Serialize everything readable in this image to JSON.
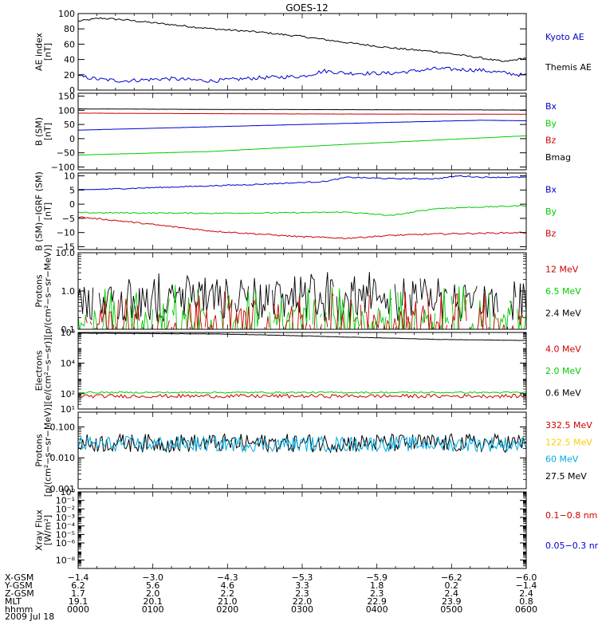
{
  "title": "GOES-12",
  "chart_data": [
    {
      "type": "line",
      "ylabel": "AE index\n[nT]",
      "ylim": [
        0,
        100
      ],
      "yticks": [
        {
          "v": 0,
          "label": "0"
        },
        {
          "v": 20,
          "label": "20"
        },
        {
          "v": 40,
          "label": "40"
        },
        {
          "v": 60,
          "label": "60"
        },
        {
          "v": 80,
          "label": "80"
        },
        {
          "v": 100,
          "label": "100"
        }
      ],
      "legend": [
        {
          "label": "Kyoto AE",
          "color": "#0000cc"
        },
        {
          "label": "Themis AE",
          "color": "#000000"
        }
      ],
      "series": [
        {
          "name": "Themis AE",
          "color": "#000000",
          "noise": 1.2,
          "x": [
            0,
            0.05,
            0.1,
            0.2,
            0.3,
            0.4,
            0.5,
            0.6,
            0.7,
            0.8,
            0.9,
            0.95,
            1.0
          ],
          "y": [
            90,
            94,
            92,
            86,
            80,
            76,
            70,
            62,
            55,
            50,
            42,
            37,
            42
          ]
        },
        {
          "name": "Kyoto AE",
          "color": "#0000cc",
          "noise": 2.5,
          "x": [
            0,
            0.05,
            0.1,
            0.2,
            0.3,
            0.4,
            0.5,
            0.55,
            0.6,
            0.7,
            0.8,
            0.9,
            1.0
          ],
          "y": [
            18,
            14,
            12,
            15,
            12,
            16,
            18,
            25,
            22,
            22,
            28,
            26,
            19
          ]
        }
      ]
    },
    {
      "type": "line",
      "ylabel": "B (SM)\n[nT]",
      "ylim": [
        -110,
        160
      ],
      "yticks": [
        {
          "v": -100,
          "label": "−100"
        },
        {
          "v": -50,
          "label": "−50"
        },
        {
          "v": 0,
          "label": "0"
        },
        {
          "v": 50,
          "label": "50"
        },
        {
          "v": 100,
          "label": "100"
        },
        {
          "v": 150,
          "label": "150"
        }
      ],
      "legend": [
        {
          "label": "Bx",
          "color": "#0000cc"
        },
        {
          "label": "By",
          "color": "#00cc00"
        },
        {
          "label": "Bz",
          "color": "#cc0000"
        },
        {
          "label": "Bmag",
          "color": "#000000"
        }
      ],
      "series": [
        {
          "name": "Bmag",
          "color": "#000000",
          "noise": 0.3,
          "x": [
            0,
            0.3,
            1.0
          ],
          "y": [
            105,
            103,
            101
          ]
        },
        {
          "name": "Bz",
          "color": "#cc0000",
          "noise": 0.3,
          "x": [
            0,
            0.5,
            1.0
          ],
          "y": [
            90,
            87,
            86
          ]
        },
        {
          "name": "Bx",
          "color": "#0000cc",
          "noise": 0.3,
          "x": [
            0,
            0.5,
            0.9,
            1.0
          ],
          "y": [
            30,
            50,
            65,
            63
          ]
        },
        {
          "name": "By",
          "color": "#00cc00",
          "noise": 0.3,
          "x": [
            0,
            0.3,
            0.6,
            1.0
          ],
          "y": [
            -58,
            -45,
            -20,
            10
          ]
        }
      ]
    },
    {
      "type": "line",
      "ylabel": "B (SM)−IGRF (SM)\n[nT]",
      "ylim": [
        -16,
        11
      ],
      "yticks": [
        {
          "v": -15,
          "label": "−15"
        },
        {
          "v": -10,
          "label": "−10"
        },
        {
          "v": -5,
          "label": "−5"
        },
        {
          "v": 0,
          "label": "0"
        },
        {
          "v": 5,
          "label": "5"
        },
        {
          "v": 10,
          "label": "10"
        }
      ],
      "legend": [
        {
          "label": "Bx",
          "color": "#0000cc"
        },
        {
          "label": "By",
          "color": "#00cc00"
        },
        {
          "label": "Bz",
          "color": "#cc0000"
        }
      ],
      "series": [
        {
          "name": "Bx",
          "color": "#0000cc",
          "noise": 0.2,
          "x": [
            0,
            0.2,
            0.4,
            0.55,
            0.6,
            0.7,
            0.8,
            0.85,
            0.9,
            1.0
          ],
          "y": [
            5,
            6,
            7,
            8,
            9.5,
            9,
            9,
            10,
            9.5,
            9.5
          ]
        },
        {
          "name": "By",
          "color": "#00cc00",
          "noise": 0.2,
          "x": [
            0,
            0.3,
            0.5,
            0.6,
            0.7,
            0.8,
            1.0
          ],
          "y": [
            -3,
            -3.2,
            -3,
            -2.8,
            -4,
            -1.5,
            -0.5
          ]
        },
        {
          "name": "Bz",
          "color": "#cc0000",
          "noise": 0.25,
          "x": [
            0,
            0.1,
            0.3,
            0.5,
            0.6,
            0.7,
            0.8,
            1.0
          ],
          "y": [
            -4.5,
            -6,
            -9.5,
            -11.5,
            -12,
            -11,
            -10.5,
            -10
          ]
        }
      ]
    },
    {
      "type": "line",
      "scale": "log",
      "ylabel": "Protons\n[p/(cm²−s−sr−MeV)]",
      "ylim": [
        0.1,
        10
      ],
      "yticks": [
        {
          "v": 0.1,
          "label": "0.1"
        },
        {
          "v": 1,
          "label": "1.0"
        },
        {
          "v": 10,
          "label": "10.0"
        }
      ],
      "legend": [
        {
          "label": "12 MeV",
          "color": "#cc0000"
        },
        {
          "label": "6.5 MeV",
          "color": "#00cc00"
        },
        {
          "label": "2.4 MeV",
          "color": "#000000"
        }
      ],
      "series": [
        {
          "name": "2.4 MeV",
          "color": "#000000",
          "spiky": true,
          "base": 0.5,
          "amp": 1.8,
          "gap": 0.25
        },
        {
          "name": "6.5 MeV",
          "color": "#00cc00",
          "spiky": true,
          "base": 0.12,
          "amp": 1.2,
          "gap": 0.55
        },
        {
          "name": "12 MeV",
          "color": "#cc0000",
          "spiky": true,
          "base": 0.1,
          "amp": 0.8,
          "gap": 0.85
        }
      ]
    },
    {
      "type": "line",
      "scale": "log",
      "ylabel": "Electrons\n[e/(cm²−s−sr)]",
      "ylim": [
        10,
        1000000
      ],
      "yticks": [
        {
          "v": 10,
          "label": "10¹"
        },
        {
          "v": 100,
          "label": "10²"
        },
        {
          "v": 10000,
          "label": "10⁴"
        },
        {
          "v": 1000000,
          "label": "10⁶"
        }
      ],
      "legend": [
        {
          "label": "4.0 MeV",
          "color": "#cc0000"
        },
        {
          "label": "2.0 MeV",
          "color": "#00cc00"
        },
        {
          "label": "0.6 MeV",
          "color": "#000000"
        }
      ],
      "series": [
        {
          "name": "0.6 MeV",
          "color": "#000000",
          "noise": 0.01,
          "x": [
            0,
            0.3,
            0.6,
            0.8,
            1.0
          ],
          "y": [
            900000,
            800000,
            500000,
            350000,
            300000
          ]
        },
        {
          "name": "2.0 MeV",
          "color": "#00cc00",
          "noise": 0.05,
          "x": [
            0,
            1.0
          ],
          "y": [
            120,
            120
          ]
        },
        {
          "name": "4.0 MeV",
          "color": "#cc0000",
          "noise": 0.12,
          "x": [
            0,
            1.0
          ],
          "y": [
            70,
            70
          ]
        }
      ]
    },
    {
      "type": "line",
      "scale": "log",
      "ylabel": "Protons\n[p/(cm²−s−sr−MeV)]",
      "ylim": [
        0.001,
        0.3
      ],
      "yticks": [
        {
          "v": 0.001,
          "label": "0.001"
        },
        {
          "v": 0.01,
          "label": "0.010"
        },
        {
          "v": 0.1,
          "label": "0.100"
        }
      ],
      "legend": [
        {
          "label": "332.5 MeV",
          "color": "#cc0000"
        },
        {
          "label": "122.5 MeV",
          "color": "#ffcc00"
        },
        {
          "label": "60 MeV",
          "color": "#00aadd"
        },
        {
          "label": "27.5 MeV",
          "color": "#000000"
        }
      ],
      "series": [
        {
          "name": "27.5 MeV",
          "color": "#000000",
          "noisy": true,
          "base": 0.03,
          "spread": 0.6
        },
        {
          "name": "60 MeV",
          "color": "#00aadd",
          "noisy": true,
          "base": 0.028,
          "spread": 0.5
        }
      ]
    },
    {
      "type": "line",
      "scale": "log",
      "ylabel": "Xray Flux\n[W/m²]",
      "ylim": [
        1e-09,
        1
      ],
      "yticks": [
        {
          "v": 1e-08,
          "label": "10⁻⁸"
        },
        {
          "v": 1e-06,
          "label": "10⁻⁶"
        },
        {
          "v": 1e-05,
          "label": "10⁻⁵"
        },
        {
          "v": 0.0001,
          "label": "10⁻⁴"
        },
        {
          "v": 0.001,
          "label": "10⁻³"
        },
        {
          "v": 0.01,
          "label": "10⁻²"
        },
        {
          "v": 0.1,
          "label": "10⁻¹"
        },
        {
          "v": 1,
          "label": "10⁰"
        }
      ],
      "legend": [
        {
          "label": "0.1−0.8 nm",
          "color": "#cc0000"
        },
        {
          "label": "0.05−0.3 nr",
          "color": "#0000cc"
        }
      ],
      "series": []
    }
  ],
  "xaxis": {
    "rows": [
      {
        "name": "X-GSM",
        "values": [
          "−1.4",
          "−3.0",
          "−4.3",
          "−5.3",
          "−5.9",
          "−6.2",
          "−6.0"
        ]
      },
      {
        "name": "Y-GSM",
        "values": [
          "6.2",
          "5.6",
          "4.6",
          "3.3",
          "1.8",
          "0.2",
          "−1.4"
        ]
      },
      {
        "name": "Z-GSM",
        "values": [
          "1.7",
          "2.0",
          "2.2",
          "2.3",
          "2.3",
          "2.4",
          "2.4"
        ]
      },
      {
        "name": "MLT",
        "values": [
          "19.1",
          "20.1",
          "21.0",
          "22.0",
          "22.9",
          "23.9",
          "0.8"
        ]
      },
      {
        "name": "hhmm",
        "values": [
          "0000",
          "0100",
          "0200",
          "0300",
          "0400",
          "0500",
          "0600"
        ]
      }
    ],
    "date": "2009 Jul 18"
  }
}
